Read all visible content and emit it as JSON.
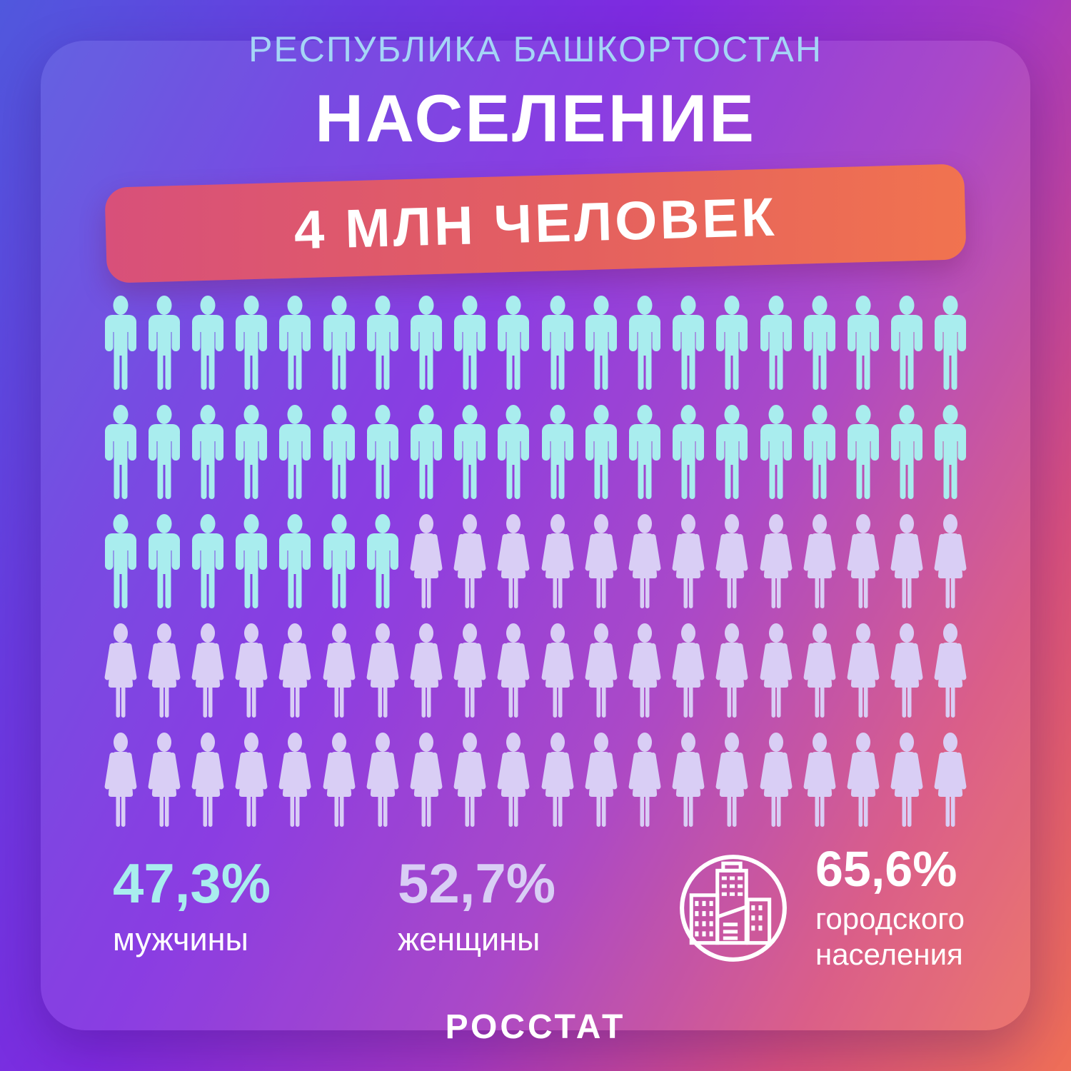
{
  "header": {
    "region": "РЕСПУБЛИКА БАШКОРТОСТАН",
    "title": "НАСЕЛЕНИЕ",
    "banner": "4 МЛН ЧЕЛОВЕК"
  },
  "chart_data": {
    "type": "pictogram",
    "title": "Население Республики Башкортостан",
    "total_label": "4 МЛН ЧЕЛОВЕК",
    "icons_total": 100,
    "icons_per_row": 20,
    "rows": 5,
    "percent_per_icon": 1,
    "series": [
      {
        "name": "мужчины",
        "percent": 47.3,
        "icons": 47,
        "color": "#a9edee",
        "icon": "man-icon"
      },
      {
        "name": "женщины",
        "percent": 52.7,
        "icons": 53,
        "color": "#d9cef5",
        "icon": "woman-icon"
      }
    ]
  },
  "stats": {
    "male": {
      "value": "47,3%",
      "label": "мужчины",
      "color": "#a9edee"
    },
    "female": {
      "value": "52,7%",
      "label": "женщины",
      "color": "#d9cef5"
    },
    "urban": {
      "value": "65,6%",
      "label": "городского населения",
      "icon": "city-buildings-icon"
    }
  },
  "footer": {
    "source": "РОССТАТ"
  },
  "colors": {
    "background_start": "#5058dd",
    "background_mid": "#7f2ae0",
    "background_end": "#ef6f57",
    "banner_start": "#d8507a",
    "banner_end": "#f1734f",
    "subtitle": "#a5d5f6",
    "male": "#a9edee",
    "female": "#d9cef5",
    "text": "#ffffff"
  }
}
